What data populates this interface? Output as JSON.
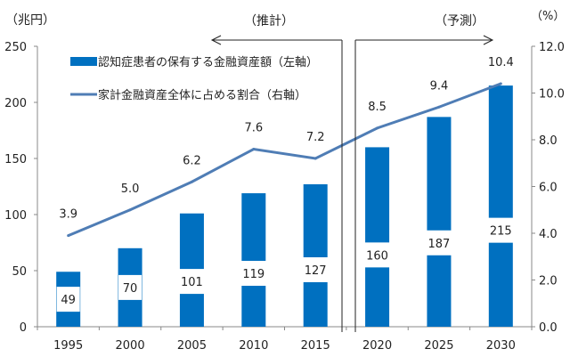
{
  "chart_data": {
    "type": "bar+line",
    "categories": [
      "1995",
      "2000",
      "2005",
      "2010",
      "2015",
      "2020",
      "2025",
      "2030"
    ],
    "series": [
      {
        "name": "認知症患者の保有する金融資産額（左軸）",
        "type": "bar",
        "axis": "left",
        "values": [
          49,
          70,
          101,
          119,
          127,
          160,
          187,
          215
        ],
        "color": "#0070C0"
      },
      {
        "name": "家計金融資産全体に占める割合（右軸）",
        "type": "line",
        "axis": "right",
        "values": [
          3.9,
          5.0,
          6.2,
          7.6,
          7.2,
          8.5,
          9.4,
          10.4
        ],
        "color": "#4F7DB5"
      }
    ],
    "y_left": {
      "label": "（兆円）",
      "range": [
        0,
        250
      ],
      "ticks": [
        "0",
        "50",
        "100",
        "150",
        "200",
        "250"
      ]
    },
    "y_right": {
      "label": "（%）",
      "range": [
        0,
        12
      ],
      "ticks": [
        "0.0",
        "2.0",
        "4.0",
        "6.0",
        "8.0",
        "10.0",
        "12.0"
      ]
    },
    "bar_labels": [
      "49",
      "70",
      "101",
      "119",
      "127",
      "160",
      "187",
      "215"
    ],
    "line_labels": [
      "3.9",
      "5.0",
      "6.2",
      "7.6",
      "7.2",
      "8.5",
      "9.4",
      "10.4"
    ],
    "annotations": {
      "estimate": "（推計）",
      "forecast": "（予測）"
    },
    "legend_placement": "top-left",
    "grid": false
  }
}
